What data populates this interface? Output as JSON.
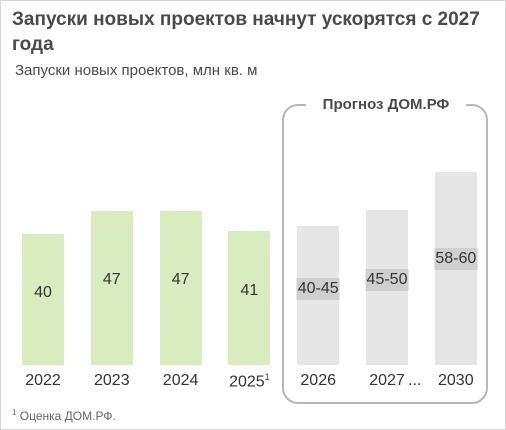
{
  "title": "Запуски новых проектов начнут ускорятся с 2027 года",
  "subtitle": "Запуски новых проектов, млн кв. м",
  "forecast_label": "Прогноз ДОМ.РФ",
  "ellipsis": "...",
  "footnote": {
    "mark": "1",
    "text": " Оценка ДОМ.РФ."
  },
  "colors": {
    "actual": "#d9ecc0",
    "forecast": "#e6e6e6",
    "forecast_label_bg": "#cfcfcf",
    "box": "#b7b7b7"
  },
  "chart_data": {
    "type": "bar",
    "categories": [
      "2022",
      "2023",
      "2024",
      "2025",
      "2026",
      "2027",
      "2030"
    ],
    "category_notes": [
      "",
      "",
      "",
      "1",
      "",
      "",
      ""
    ],
    "values": [
      40,
      47,
      47,
      41,
      42.5,
      47.5,
      59
    ],
    "value_labels": [
      "40",
      "47",
      "47",
      "41",
      "40-45",
      "45-50",
      "58-60"
    ],
    "forecast": [
      false,
      false,
      false,
      false,
      true,
      true,
      true
    ],
    "ylim": [
      0,
      60
    ]
  }
}
